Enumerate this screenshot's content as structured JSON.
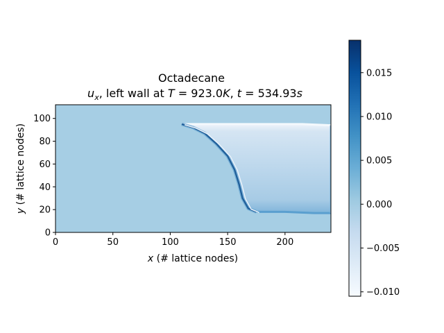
{
  "chart_data": {
    "type": "heatmap",
    "title_line1": "Octadecane",
    "title_line2": {
      "var": "u",
      "var_sub": "x",
      "mid": ", left wall at ",
      "T_sym": "T",
      "T_val": " = 923.0",
      "T_unit": "K",
      "sep": ", ",
      "t_sym": "t",
      "t_val": " = 534.93",
      "t_unit": "s"
    },
    "xlabel": {
      "sym": "x",
      "text": " (# lattice nodes)"
    },
    "ylabel": {
      "sym": "y",
      "text": " (# lattice nodes)"
    },
    "x_range": [
      0,
      240
    ],
    "y_range": [
      0,
      112
    ],
    "x_ticks": [
      0,
      50,
      100,
      150,
      200
    ],
    "y_ticks": [
      0,
      20,
      40,
      60,
      80,
      100
    ],
    "x_tick_labels": [
      "0",
      "50",
      "100",
      "150",
      "200"
    ],
    "y_tick_labels": [
      "0",
      "20",
      "40",
      "60",
      "80",
      "100"
    ],
    "colormap": "Blues",
    "colorbar": {
      "range": [
        -0.0105,
        0.0187
      ],
      "ticks": [
        -0.01,
        -0.005,
        0.0,
        0.005,
        0.01,
        0.015
      ],
      "tick_labels": [
        "−0.010",
        "−0.005",
        "0.000",
        "0.005",
        "0.010",
        "0.015"
      ]
    },
    "background_value": 0.0,
    "melt_front": [
      [
        110,
        95
      ],
      [
        120,
        92
      ],
      [
        130,
        87
      ],
      [
        140,
        78
      ],
      [
        150,
        67
      ],
      [
        156,
        55
      ],
      [
        160,
        42
      ],
      [
        163,
        30
      ],
      [
        168,
        21
      ],
      [
        175,
        18
      ]
    ],
    "melt_region_top": [
      [
        110,
        95
      ],
      [
        140,
        95
      ],
      [
        180,
        95
      ],
      [
        215,
        95
      ],
      [
        240,
        94
      ]
    ],
    "melt_region_bottom": [
      [
        175,
        18
      ],
      [
        200,
        18
      ],
      [
        225,
        17
      ],
      [
        240,
        17
      ]
    ],
    "front_value": 0.0135,
    "interior_value": -0.0025,
    "top_edge_value": -0.008,
    "bottom_edge_value": 0.0045,
    "right_edge_value": 0.002
  }
}
